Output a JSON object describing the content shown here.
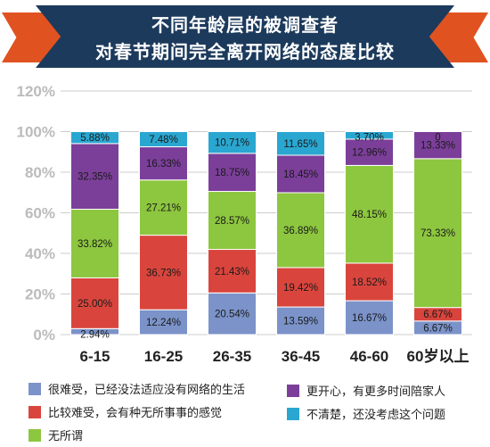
{
  "title_lines": [
    "不同年龄层的被调查者",
    "对春节期间完全离开网络的态度比较"
  ],
  "chart_data": {
    "type": "bar",
    "stacked": true,
    "categories": [
      "6-15",
      "16-25",
      "26-35",
      "36-45",
      "46-60",
      "60岁以上"
    ],
    "y_ticks": [
      "0%",
      "20%",
      "40%",
      "60%",
      "80%",
      "100%",
      "120%"
    ],
    "ylim": [
      0,
      120
    ],
    "series": [
      {
        "name": "很难受，已经没法适应没有网络的生活",
        "color": "#7b93c9",
        "values": [
          2.94,
          12.24,
          20.54,
          13.59,
          16.67,
          6.67
        ],
        "labels": [
          "2.94%",
          "12.24%",
          "20.54%",
          "13.59%",
          "16.67%",
          "6.67%"
        ]
      },
      {
        "name": "比较难受，会有种无所事事的感觉",
        "color": "#d9453d",
        "values": [
          25.0,
          36.73,
          21.43,
          19.42,
          18.52,
          6.67
        ],
        "labels": [
          "25.00%",
          "36.73%",
          "21.43%",
          "19.42%",
          "18.52%",
          "6.67%"
        ]
      },
      {
        "name": "无所谓",
        "color": "#8dc63f",
        "values": [
          33.82,
          27.21,
          28.57,
          36.89,
          48.15,
          73.33
        ],
        "labels": [
          "33.82%",
          "27.21%",
          "28.57%",
          "36.89%",
          "48.15%",
          "73.33%"
        ]
      },
      {
        "name": "更开心，有更多时间陪家人",
        "color": "#7b3f99",
        "values": [
          32.35,
          16.33,
          18.75,
          18.45,
          12.96,
          13.33
        ],
        "labels": [
          "32.35%",
          "16.33%",
          "18.75%",
          "18.45%",
          "12.96%",
          "13.33%"
        ]
      },
      {
        "name": "不清楚，还没考虑这个问题",
        "color": "#2aa7d1",
        "values": [
          5.88,
          7.48,
          10.71,
          11.65,
          3.7,
          0
        ],
        "labels": [
          "5.88%",
          "7.48%",
          "10.71%",
          "11.65%",
          "3.70%",
          "0"
        ]
      }
    ],
    "grid": true,
    "legend_position": "bottom"
  },
  "colors": {
    "title_bg": "#1c3a5c",
    "title_accent": "#e05320",
    "background": "#ffffff",
    "grid": "#cccccc",
    "tick_text": "#bbbbbb",
    "category_text": "#222222"
  }
}
